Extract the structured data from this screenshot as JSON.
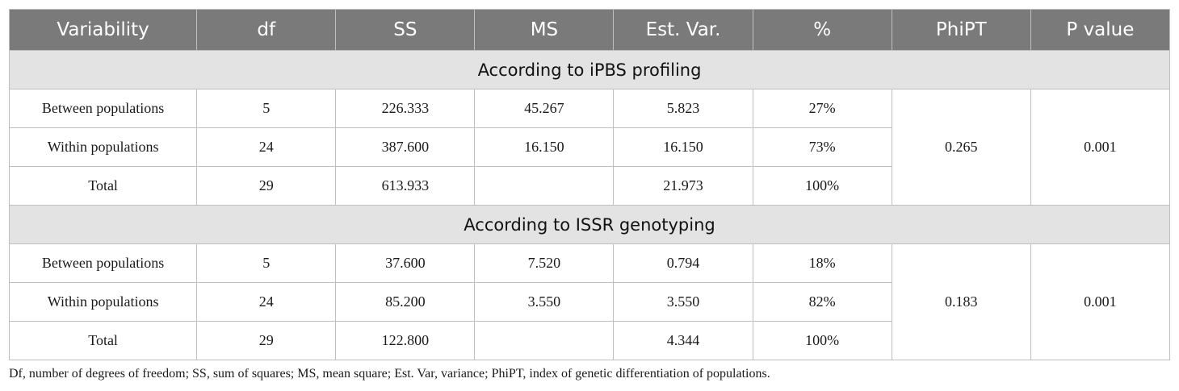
{
  "headers": [
    "Variability",
    "df",
    "SS",
    "MS",
    "Est. Var.",
    "%",
    "PhiPT",
    "P value"
  ],
  "sections": [
    {
      "title": "According to iPBS profiling",
      "rows": [
        {
          "variability": "Between populations",
          "df": "5",
          "ss": "226.333",
          "ms": "45.267",
          "est_var": "5.823",
          "pct": "27%"
        },
        {
          "variability": "Within populations",
          "df": "24",
          "ss": "387.600",
          "ms": "16.150",
          "est_var": "16.150",
          "pct": "73%"
        },
        {
          "variability": "Total",
          "df": "29",
          "ss": "613.933",
          "ms": "",
          "est_var": "21.973",
          "pct": "100%"
        }
      ],
      "phipt": "0.265",
      "p_value": "0.001"
    },
    {
      "title": "According to ISSR genotyping",
      "rows": [
        {
          "variability": "Between populations",
          "df": "5",
          "ss": "37.600",
          "ms": "7.520",
          "est_var": "0.794",
          "pct": "18%"
        },
        {
          "variability": "Within populations",
          "df": "24",
          "ss": "85.200",
          "ms": "3.550",
          "est_var": "3.550",
          "pct": "82%"
        },
        {
          "variability": "Total",
          "df": "29",
          "ss": "122.800",
          "ms": "",
          "est_var": "4.344",
          "pct": "100%"
        }
      ],
      "phipt": "0.183",
      "p_value": "0.001"
    }
  ],
  "footnote": "Df, number of degrees of freedom; SS, sum of squares; MS, mean square; Est. Var, variance; PhiPT, index of genetic differentiation of populations."
}
